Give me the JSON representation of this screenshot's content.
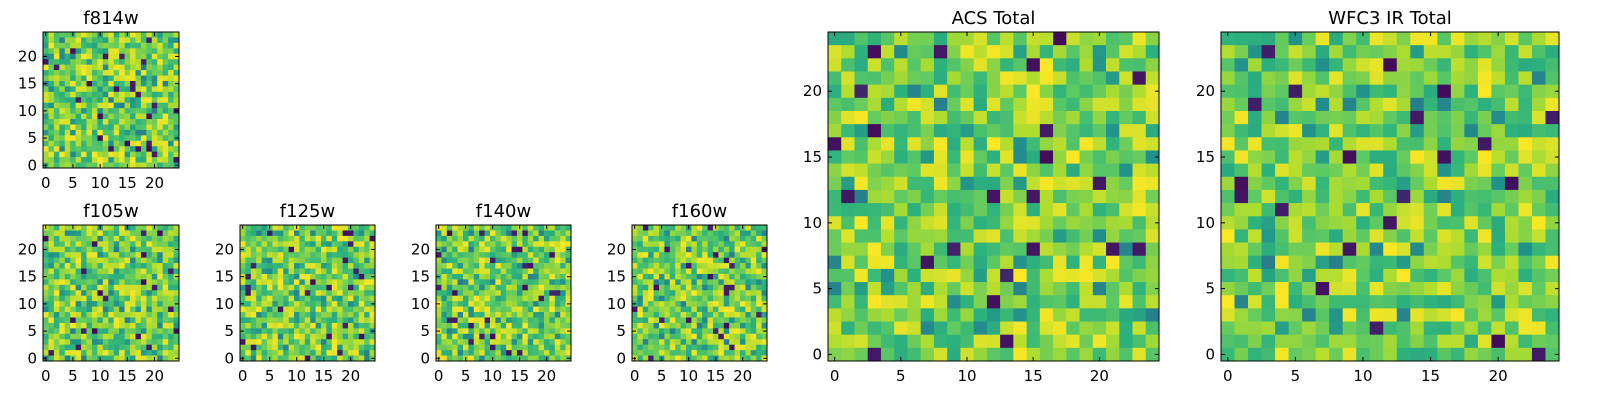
{
  "chart_data": [
    {
      "id": "f814w",
      "type": "heatmap",
      "title": "f814w",
      "grid_size": 25,
      "xticks": [
        "0",
        "5",
        "10",
        "15",
        "20"
      ],
      "yticks": [
        "0",
        "5",
        "10",
        "15",
        "20"
      ],
      "xlim": [
        0,
        24
      ],
      "ylim": [
        0,
        24
      ],
      "colormap": "viridis",
      "seed": 814
    },
    {
      "id": "f105w",
      "type": "heatmap",
      "title": "f105w",
      "grid_size": 25,
      "xticks": [
        "0",
        "5",
        "10",
        "15",
        "20"
      ],
      "yticks": [
        "0",
        "5",
        "10",
        "15",
        "20"
      ],
      "xlim": [
        0,
        24
      ],
      "ylim": [
        0,
        24
      ],
      "colormap": "viridis",
      "seed": 105
    },
    {
      "id": "f125w",
      "type": "heatmap",
      "title": "f125w",
      "grid_size": 25,
      "xticks": [
        "0",
        "5",
        "10",
        "15",
        "20"
      ],
      "yticks": [
        "0",
        "5",
        "10",
        "15",
        "20"
      ],
      "xlim": [
        0,
        24
      ],
      "ylim": [
        0,
        24
      ],
      "colormap": "viridis",
      "seed": 125
    },
    {
      "id": "f140w",
      "type": "heatmap",
      "title": "f140w",
      "grid_size": 25,
      "xticks": [
        "0",
        "5",
        "10",
        "15",
        "20"
      ],
      "yticks": [
        "0",
        "5",
        "10",
        "15",
        "20"
      ],
      "xlim": [
        0,
        24
      ],
      "ylim": [
        0,
        24
      ],
      "colormap": "viridis",
      "seed": 140
    },
    {
      "id": "f160w",
      "type": "heatmap",
      "title": "f160w",
      "grid_size": 25,
      "xticks": [
        "0",
        "5",
        "10",
        "15",
        "20"
      ],
      "yticks": [
        "0",
        "5",
        "10",
        "15",
        "20"
      ],
      "xlim": [
        0,
        24
      ],
      "ylim": [
        0,
        24
      ],
      "colormap": "viridis",
      "seed": 160
    },
    {
      "id": "acs_total",
      "type": "heatmap",
      "title": "ACS Total",
      "grid_size": 25,
      "xticks": [
        "0",
        "5",
        "10",
        "15",
        "20"
      ],
      "yticks": [
        "0",
        "5",
        "10",
        "15",
        "20"
      ],
      "xlim": [
        0,
        24
      ],
      "ylim": [
        0,
        24
      ],
      "colormap": "viridis",
      "seed": 901
    },
    {
      "id": "wfc3_total",
      "type": "heatmap",
      "title": "WFC3 IR Total",
      "grid_size": 25,
      "xticks": [
        "0",
        "5",
        "10",
        "15",
        "20"
      ],
      "yticks": [
        "0",
        "5",
        "10",
        "15",
        "20"
      ],
      "xlim": [
        0,
        24
      ],
      "ylim": [
        0,
        24
      ],
      "colormap": "viridis",
      "seed": 902
    }
  ],
  "colors": {
    "viridis": [
      "#440154",
      "#3b528b",
      "#21918c",
      "#2db27d",
      "#5ec962",
      "#addc30",
      "#fde725"
    ]
  }
}
